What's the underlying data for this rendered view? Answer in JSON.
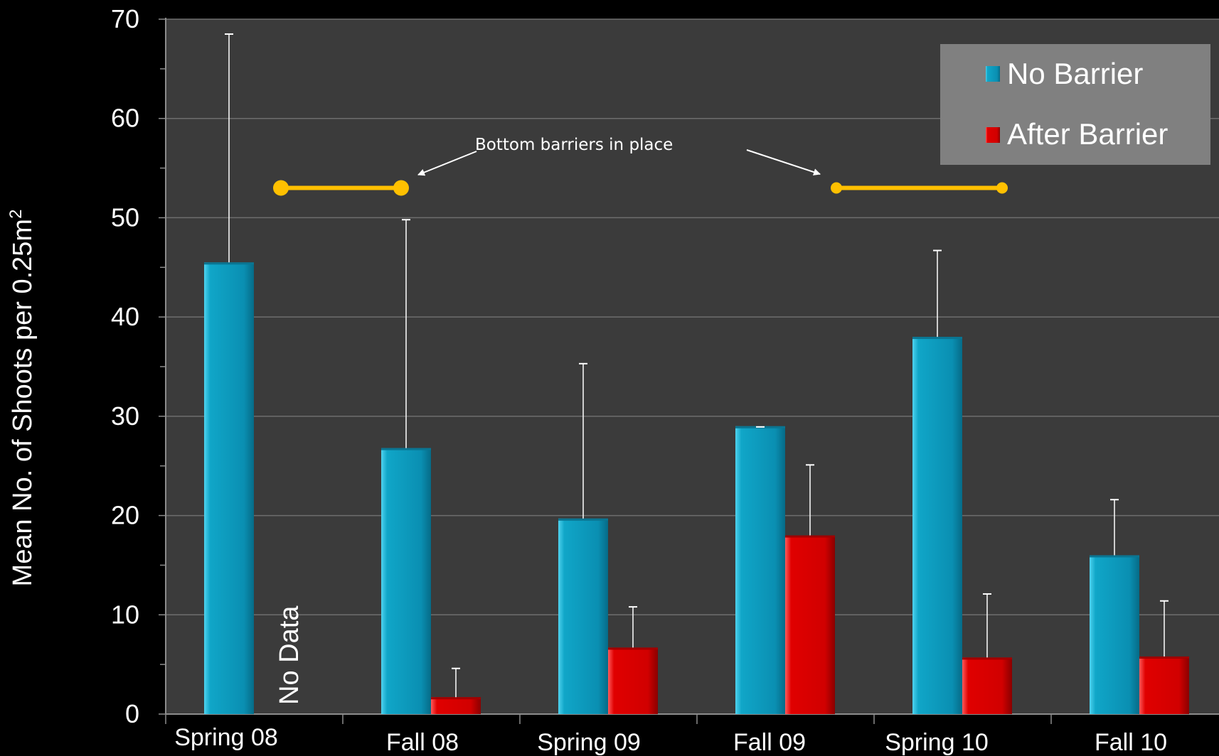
{
  "chart_data": {
    "type": "bar",
    "ylabel": "Mean No. of Shoots per 0.25m",
    "ylabel_superscript": "2",
    "ylim": [
      0,
      70
    ],
    "yticks": [
      0,
      10,
      20,
      30,
      40,
      50,
      60,
      70
    ],
    "categories": [
      "Spring 08",
      "Fall 08",
      "Spring 09",
      "Fall 09",
      "Spring 10",
      "Fall 10"
    ],
    "series": [
      {
        "name": "No Barrier",
        "color": "#0e9cbf",
        "values": [
          45.5,
          26.8,
          19.7,
          29.0,
          38.0,
          16.0
        ],
        "error_upper": [
          68.5,
          49.8,
          35.3,
          29.0,
          46.7,
          21.6
        ]
      },
      {
        "name": "After Barrier",
        "color": "#dd0000",
        "values": [
          null,
          1.7,
          6.7,
          18.0,
          5.7,
          5.8
        ],
        "error_upper": [
          null,
          4.6,
          10.8,
          25.1,
          12.1,
          11.4
        ]
      }
    ],
    "no_data_label": "No Data",
    "legend_position": "top-right",
    "grid": true,
    "annotation": {
      "text": "Bottom barriers in place",
      "color": "#ffc000",
      "periods": [
        {
          "start": "Spring 08",
          "end": "Fall 08",
          "y": 53
        },
        {
          "start": "Fall 09",
          "end": "Spring 10",
          "y": 53
        }
      ]
    }
  }
}
